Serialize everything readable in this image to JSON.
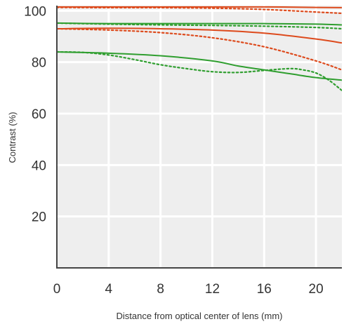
{
  "chart_data": {
    "type": "line",
    "xlabel": "Distance from optical center of lens (mm)",
    "ylabel": "Contrast (%)",
    "xlim": [
      0,
      22
    ],
    "ylim": [
      0,
      102
    ],
    "xticks": [
      "0",
      "4",
      "8",
      "12",
      "16",
      "20"
    ],
    "xtick_values": [
      0,
      4,
      8,
      12,
      16,
      20
    ],
    "yticks": [
      "20",
      "40",
      "60",
      "80",
      "100"
    ],
    "ytick_values": [
      20,
      40,
      60,
      80,
      100
    ],
    "grid": true,
    "background": "#eeeeee",
    "colors": {
      "red": "#dd4a1c",
      "green": "#2f9e2f"
    },
    "series": [
      {
        "color": "red",
        "style": "solid",
        "x": [
          0,
          4,
          8,
          12,
          16,
          20,
          22
        ],
        "y": [
          101.5,
          101.5,
          101.5,
          101.5,
          101.5,
          101.3,
          101.2
        ]
      },
      {
        "color": "red",
        "style": "dotted",
        "x": [
          0,
          4,
          8,
          12,
          16,
          20,
          22
        ],
        "y": [
          101.3,
          101.2,
          101.2,
          101.0,
          100.5,
          99.5,
          99.0
        ]
      },
      {
        "color": "red",
        "style": "solid",
        "x": [
          0,
          4,
          8,
          12,
          16,
          20,
          22
        ],
        "y": [
          93.0,
          93.2,
          93.0,
          92.5,
          91.3,
          89.0,
          87.5
        ]
      },
      {
        "color": "red",
        "style": "dotted",
        "x": [
          0,
          4,
          8,
          12,
          16,
          20,
          22
        ],
        "y": [
          93.0,
          92.5,
          91.5,
          89.5,
          86.0,
          80.5,
          77.0
        ]
      },
      {
        "color": "green",
        "style": "solid",
        "x": [
          0,
          4,
          8,
          12,
          16,
          20,
          22
        ],
        "y": [
          95.2,
          95.0,
          95.0,
          95.0,
          95.0,
          94.8,
          94.5
        ]
      },
      {
        "color": "green",
        "style": "dotted",
        "x": [
          0,
          4,
          8,
          12,
          16,
          20,
          22
        ],
        "y": [
          95.2,
          94.8,
          94.5,
          94.3,
          94.0,
          93.5,
          93.0
        ]
      },
      {
        "color": "green",
        "style": "solid",
        "x": [
          0,
          4,
          8,
          12,
          14,
          16,
          18,
          20,
          22
        ],
        "y": [
          84.0,
          83.5,
          82.5,
          80.5,
          78.5,
          77.0,
          75.5,
          74.0,
          73.0
        ]
      },
      {
        "color": "green",
        "style": "dotted",
        "x": [
          0,
          2,
          4,
          6,
          8,
          10,
          12,
          14,
          16,
          18,
          19,
          20,
          21,
          22
        ],
        "y": [
          84.0,
          83.8,
          82.8,
          81.0,
          79.0,
          77.5,
          76.3,
          76.0,
          76.8,
          77.5,
          77.0,
          75.8,
          73.0,
          69.0
        ]
      }
    ]
  }
}
